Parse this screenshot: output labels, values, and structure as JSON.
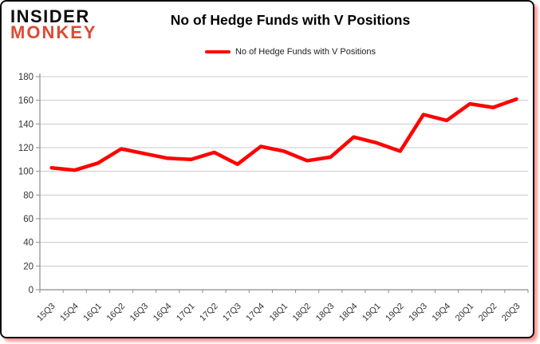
{
  "header": {
    "logo_line1": "INSIDER",
    "logo_line2": "MONKEY",
    "title": "No of Hedge Funds with V Positions"
  },
  "legend": {
    "label": "No of Hedge Funds with V Positions"
  },
  "chart_data": {
    "type": "line",
    "title": "No of Hedge Funds with V Positions",
    "categories": [
      "15Q3",
      "15Q4",
      "16Q1",
      "16Q2",
      "16Q3",
      "16Q4",
      "17Q1",
      "17Q2",
      "17Q3",
      "17Q4",
      "18Q1",
      "18Q2",
      "18Q3",
      "18Q4",
      "19Q1",
      "19Q2",
      "19Q3",
      "19Q4",
      "20Q1",
      "20Q2",
      "20Q3"
    ],
    "series": [
      {
        "name": "No of Hedge Funds with V Positions",
        "color": "#ff0000",
        "values": [
          103,
          101,
          107,
          119,
          115,
          111,
          110,
          116,
          106,
          121,
          117,
          109,
          112,
          129,
          124,
          117,
          148,
          143,
          157,
          154,
          161
        ]
      }
    ],
    "xlabel": "",
    "ylabel": "",
    "ylim": [
      0,
      180
    ],
    "ytick_step": 20,
    "grid": true,
    "legend_position": "top-center"
  },
  "colors": {
    "line": "#ff0000",
    "logo_accent": "#dc4a32",
    "gridline": "#c8c8c8",
    "axis": "#8c8c8c",
    "tick_label": "#333333"
  }
}
